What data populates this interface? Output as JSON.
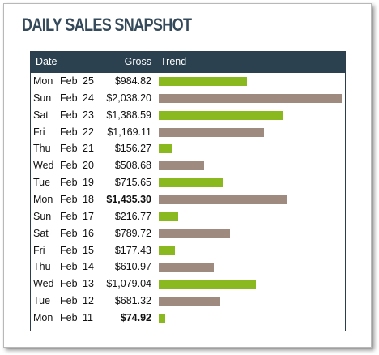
{
  "title": "DAILY SALES SNAPSHOT",
  "headers": {
    "date": "Date",
    "gross": "Gross",
    "trend": "Trend"
  },
  "colors": {
    "header_bg": "#2c4150",
    "bar_green": "#8ab81f",
    "bar_taupe": "#9e8a7e",
    "title": "#34495a"
  },
  "trend_max": 2038.2,
  "rows": [
    {
      "day": "Mon",
      "month": "Feb",
      "date": "25",
      "gross": "$984.82",
      "value": 984.82,
      "bold": false,
      "color": "green"
    },
    {
      "day": "Sun",
      "month": "Feb",
      "date": "24",
      "gross": "$2,038.20",
      "value": 2038.2,
      "bold": false,
      "color": "taupe"
    },
    {
      "day": "Sat",
      "month": "Feb",
      "date": "23",
      "gross": "$1,388.59",
      "value": 1388.59,
      "bold": false,
      "color": "green"
    },
    {
      "day": "Fri",
      "month": "Feb",
      "date": "22",
      "gross": "$1,169.11",
      "value": 1169.11,
      "bold": false,
      "color": "taupe"
    },
    {
      "day": "Thu",
      "month": "Feb",
      "date": "21",
      "gross": "$156.27",
      "value": 156.27,
      "bold": false,
      "color": "green"
    },
    {
      "day": "Wed",
      "month": "Feb",
      "date": "20",
      "gross": "$508.68",
      "value": 508.68,
      "bold": false,
      "color": "taupe"
    },
    {
      "day": "Tue",
      "month": "Feb",
      "date": "19",
      "gross": "$715.65",
      "value": 715.65,
      "bold": false,
      "color": "green"
    },
    {
      "day": "Mon",
      "month": "Feb",
      "date": "18",
      "gross": "$1,435.30",
      "value": 1435.3,
      "bold": true,
      "color": "taupe"
    },
    {
      "day": "Sun",
      "month": "Feb",
      "date": "17",
      "gross": "$216.77",
      "value": 216.77,
      "bold": false,
      "color": "green"
    },
    {
      "day": "Sat",
      "month": "Feb",
      "date": "16",
      "gross": "$789.72",
      "value": 789.72,
      "bold": false,
      "color": "taupe"
    },
    {
      "day": "Fri",
      "month": "Feb",
      "date": "15",
      "gross": "$177.43",
      "value": 177.43,
      "bold": false,
      "color": "green"
    },
    {
      "day": "Thu",
      "month": "Feb",
      "date": "14",
      "gross": "$610.97",
      "value": 610.97,
      "bold": false,
      "color": "taupe"
    },
    {
      "day": "Wed",
      "month": "Feb",
      "date": "13",
      "gross": "$1,079.04",
      "value": 1079.04,
      "bold": false,
      "color": "green"
    },
    {
      "day": "Tue",
      "month": "Feb",
      "date": "12",
      "gross": "$681.32",
      "value": 681.32,
      "bold": false,
      "color": "taupe"
    },
    {
      "day": "Mon",
      "month": "Feb",
      "date": "11",
      "gross": "$74.92",
      "value": 74.92,
      "bold": true,
      "color": "green"
    }
  ]
}
